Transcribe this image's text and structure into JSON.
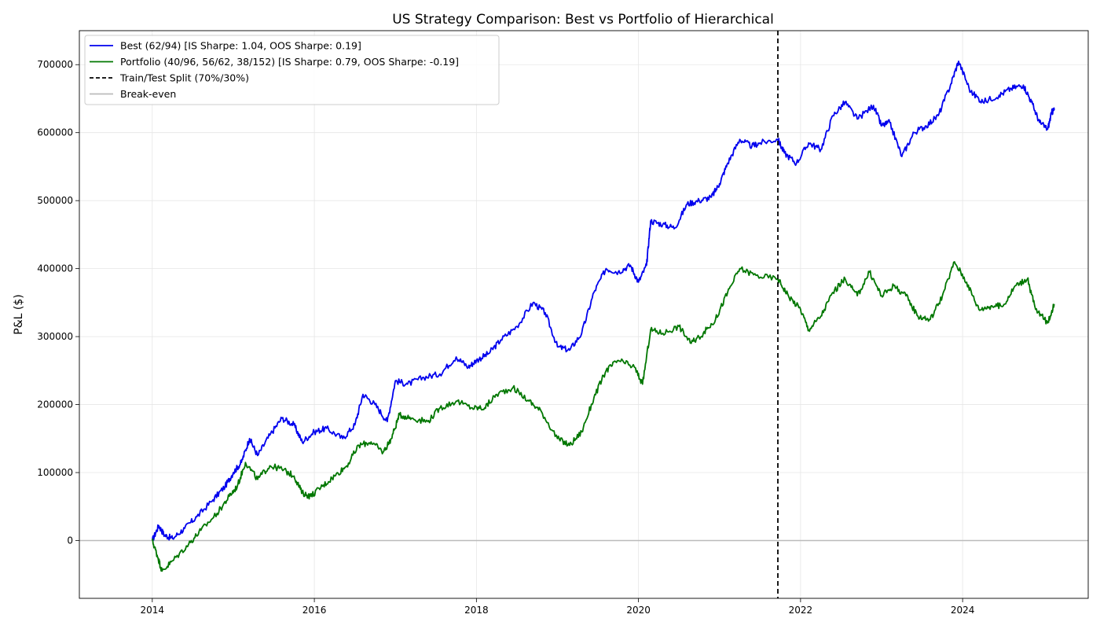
{
  "chart_data": {
    "type": "line",
    "title": "US Strategy Comparison: Best vs Portfolio of Hierarchical",
    "xlabel": "",
    "ylabel": "P&L ($)",
    "xlim": [
      2013.1,
      2025.55
    ],
    "ylim": [
      -85000,
      750000
    ],
    "x_ticks": [
      {
        "value": 2014,
        "label": "2014"
      },
      {
        "value": 2016,
        "label": "2016"
      },
      {
        "value": 2018,
        "label": "2018"
      },
      {
        "value": 2020,
        "label": "2020"
      },
      {
        "value": 2022,
        "label": "2022"
      },
      {
        "value": 2024,
        "label": "2024"
      }
    ],
    "y_ticks": [
      {
        "value": 0,
        "label": "0"
      },
      {
        "value": 100000,
        "label": "100000"
      },
      {
        "value": 200000,
        "label": "200000"
      },
      {
        "value": 300000,
        "label": "300000"
      },
      {
        "value": 400000,
        "label": "400000"
      },
      {
        "value": 500000,
        "label": "500000"
      },
      {
        "value": 600000,
        "label": "600000"
      },
      {
        "value": 700000,
        "label": "700000"
      }
    ],
    "grid": true,
    "legend_position": "top-left",
    "split_x": 2021.72,
    "breakeven_y": 0,
    "series": [
      {
        "name": "Best (62/94) [IS Sharpe: 1.04, OOS Sharpe: 0.19]",
        "color": "#0000ee",
        "points": [
          [
            2014.0,
            0
          ],
          [
            2014.08,
            22000
          ],
          [
            2014.15,
            8000
          ],
          [
            2014.25,
            3000
          ],
          [
            2014.4,
            18000
          ],
          [
            2014.55,
            35000
          ],
          [
            2014.75,
            60000
          ],
          [
            2014.9,
            80000
          ],
          [
            2015.0,
            100000
          ],
          [
            2015.1,
            115000
          ],
          [
            2015.2,
            150000
          ],
          [
            2015.3,
            125000
          ],
          [
            2015.45,
            155000
          ],
          [
            2015.6,
            180000
          ],
          [
            2015.75,
            170000
          ],
          [
            2015.85,
            145000
          ],
          [
            2016.0,
            160000
          ],
          [
            2016.15,
            165000
          ],
          [
            2016.35,
            150000
          ],
          [
            2016.5,
            170000
          ],
          [
            2016.6,
            215000
          ],
          [
            2016.75,
            200000
          ],
          [
            2016.9,
            175000
          ],
          [
            2017.0,
            235000
          ],
          [
            2017.15,
            230000
          ],
          [
            2017.35,
            240000
          ],
          [
            2017.55,
            245000
          ],
          [
            2017.75,
            270000
          ],
          [
            2017.9,
            255000
          ],
          [
            2018.0,
            265000
          ],
          [
            2018.15,
            275000
          ],
          [
            2018.3,
            295000
          ],
          [
            2018.5,
            315000
          ],
          [
            2018.7,
            350000
          ],
          [
            2018.85,
            335000
          ],
          [
            2019.0,
            285000
          ],
          [
            2019.15,
            280000
          ],
          [
            2019.3,
            305000
          ],
          [
            2019.45,
            365000
          ],
          [
            2019.6,
            400000
          ],
          [
            2019.75,
            395000
          ],
          [
            2019.9,
            405000
          ],
          [
            2020.0,
            380000
          ],
          [
            2020.1,
            405000
          ],
          [
            2020.15,
            470000
          ],
          [
            2020.3,
            465000
          ],
          [
            2020.45,
            460000
          ],
          [
            2020.6,
            495000
          ],
          [
            2020.75,
            500000
          ],
          [
            2020.9,
            505000
          ],
          [
            2021.0,
            525000
          ],
          [
            2021.1,
            555000
          ],
          [
            2021.25,
            590000
          ],
          [
            2021.4,
            580000
          ],
          [
            2021.5,
            585000
          ],
          [
            2021.72,
            590000
          ],
          [
            2021.8,
            570000
          ],
          [
            2021.95,
            555000
          ],
          [
            2022.1,
            585000
          ],
          [
            2022.25,
            575000
          ],
          [
            2022.4,
            625000
          ],
          [
            2022.55,
            645000
          ],
          [
            2022.7,
            620000
          ],
          [
            2022.9,
            640000
          ],
          [
            2023.0,
            610000
          ],
          [
            2023.1,
            615000
          ],
          [
            2023.25,
            565000
          ],
          [
            2023.4,
            600000
          ],
          [
            2023.55,
            610000
          ],
          [
            2023.7,
            625000
          ],
          [
            2023.85,
            670000
          ],
          [
            2023.95,
            705000
          ],
          [
            2024.1,
            660000
          ],
          [
            2024.25,
            645000
          ],
          [
            2024.45,
            655000
          ],
          [
            2024.6,
            665000
          ],
          [
            2024.75,
            670000
          ],
          [
            2024.85,
            645000
          ],
          [
            2024.95,
            615000
          ],
          [
            2025.05,
            605000
          ],
          [
            2025.1,
            630000
          ],
          [
            2025.13,
            633000
          ]
        ]
      },
      {
        "name": "Portfolio (40/96, 56/62, 38/152) [IS Sharpe: 0.79, OOS Sharpe: -0.19]",
        "color": "#007700",
        "points": [
          [
            2014.0,
            0
          ],
          [
            2014.07,
            -25000
          ],
          [
            2014.12,
            -45000
          ],
          [
            2014.25,
            -30000
          ],
          [
            2014.45,
            -5000
          ],
          [
            2014.6,
            15000
          ],
          [
            2014.8,
            40000
          ],
          [
            2014.95,
            65000
          ],
          [
            2015.05,
            80000
          ],
          [
            2015.15,
            115000
          ],
          [
            2015.3,
            90000
          ],
          [
            2015.45,
            110000
          ],
          [
            2015.6,
            105000
          ],
          [
            2015.75,
            95000
          ],
          [
            2015.85,
            70000
          ],
          [
            2015.95,
            65000
          ],
          [
            2016.1,
            80000
          ],
          [
            2016.25,
            95000
          ],
          [
            2016.4,
            110000
          ],
          [
            2016.55,
            140000
          ],
          [
            2016.7,
            145000
          ],
          [
            2016.85,
            130000
          ],
          [
            2016.95,
            150000
          ],
          [
            2017.05,
            185000
          ],
          [
            2017.2,
            180000
          ],
          [
            2017.4,
            175000
          ],
          [
            2017.55,
            195000
          ],
          [
            2017.75,
            205000
          ],
          [
            2017.95,
            195000
          ],
          [
            2018.1,
            195000
          ],
          [
            2018.25,
            215000
          ],
          [
            2018.45,
            225000
          ],
          [
            2018.65,
            205000
          ],
          [
            2018.8,
            190000
          ],
          [
            2019.0,
            150000
          ],
          [
            2019.15,
            140000
          ],
          [
            2019.3,
            160000
          ],
          [
            2019.45,
            210000
          ],
          [
            2019.6,
            250000
          ],
          [
            2019.75,
            265000
          ],
          [
            2019.95,
            255000
          ],
          [
            2020.05,
            230000
          ],
          [
            2020.15,
            310000
          ],
          [
            2020.3,
            305000
          ],
          [
            2020.5,
            315000
          ],
          [
            2020.65,
            290000
          ],
          [
            2020.8,
            305000
          ],
          [
            2020.95,
            325000
          ],
          [
            2021.1,
            365000
          ],
          [
            2021.25,
            400000
          ],
          [
            2021.45,
            390000
          ],
          [
            2021.72,
            385000
          ],
          [
            2021.85,
            360000
          ],
          [
            2022.0,
            340000
          ],
          [
            2022.1,
            310000
          ],
          [
            2022.25,
            330000
          ],
          [
            2022.4,
            365000
          ],
          [
            2022.55,
            385000
          ],
          [
            2022.7,
            360000
          ],
          [
            2022.85,
            395000
          ],
          [
            2023.0,
            360000
          ],
          [
            2023.15,
            375000
          ],
          [
            2023.3,
            360000
          ],
          [
            2023.45,
            330000
          ],
          [
            2023.6,
            325000
          ],
          [
            2023.75,
            360000
          ],
          [
            2023.9,
            410000
          ],
          [
            2024.05,
            380000
          ],
          [
            2024.2,
            340000
          ],
          [
            2024.35,
            345000
          ],
          [
            2024.5,
            345000
          ],
          [
            2024.65,
            375000
          ],
          [
            2024.8,
            385000
          ],
          [
            2024.9,
            340000
          ],
          [
            2025.05,
            320000
          ],
          [
            2025.13,
            348000
          ]
        ]
      }
    ],
    "legend": [
      {
        "label": "Best (62/94) [IS Sharpe: 1.04, OOS Sharpe: 0.19]",
        "color": "#0000ee",
        "style": "solid"
      },
      {
        "label": "Portfolio (40/96, 56/62, 38/152) [IS Sharpe: 0.79, OOS Sharpe: -0.19]",
        "color": "#007700",
        "style": "solid"
      },
      {
        "label": "Train/Test Split (70%/30%)",
        "color": "#000000",
        "style": "dashed"
      },
      {
        "label": "Break-even",
        "color": "#bbbbbb",
        "style": "solid"
      }
    ]
  }
}
